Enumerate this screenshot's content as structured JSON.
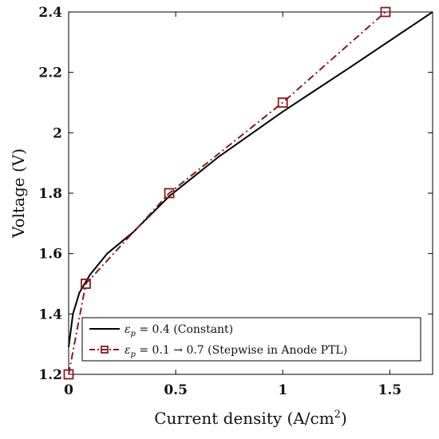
{
  "chart_data": {
    "type": "line",
    "title": "",
    "xlabel": "Current density (A/cm",
    "xlabel_sup": "2",
    "xlabel_close": ")",
    "ylabel": "Voltage (V)",
    "xlim": [
      0,
      1.7
    ],
    "ylim": [
      1.2,
      2.4
    ],
    "xticks": [
      0,
      0.5,
      1,
      1.5
    ],
    "xtick_labels": [
      "0",
      "0.5",
      "1",
      "1.5"
    ],
    "yticks": [
      1.2,
      1.4,
      1.6,
      1.8,
      2.0,
      2.2,
      2.4
    ],
    "ytick_labels": [
      "1.2",
      "1.4",
      "1.6",
      "1.8",
      "2",
      "2.2",
      "2.4"
    ],
    "grid": false,
    "legend_position": "bottom-right",
    "series": [
      {
        "name": "ε_p = 0.4 (Constant)",
        "color": "#000000",
        "style": "solid",
        "marker": "none",
        "x": [
          0.0,
          0.02,
          0.05,
          0.1,
          0.18,
          0.3,
          0.47,
          0.7,
          1.0,
          1.3,
          1.7
        ],
        "y": [
          1.29,
          1.4,
          1.47,
          1.53,
          1.6,
          1.67,
          1.79,
          1.92,
          2.07,
          2.21,
          2.4
        ]
      },
      {
        "name": "ε_p = 0.1 → 0.7 (Stepwise in Anode PTL)",
        "color": "#8b1a1a",
        "style": "dashdot",
        "marker": "square",
        "x": [
          0.0,
          0.08,
          0.47,
          1.0,
          1.48
        ],
        "y": [
          1.2,
          1.5,
          1.8,
          2.1,
          2.4
        ]
      }
    ],
    "legend": {
      "entry1_sym": "ε",
      "entry1_sub": "p",
      "entry1_rest": " = 0.4 (Constant)",
      "entry2_sym": "ε",
      "entry2_sub": "p",
      "entry2_rest": " = 0.1 → 0.7 (Stepwise in Anode PTL)"
    }
  }
}
